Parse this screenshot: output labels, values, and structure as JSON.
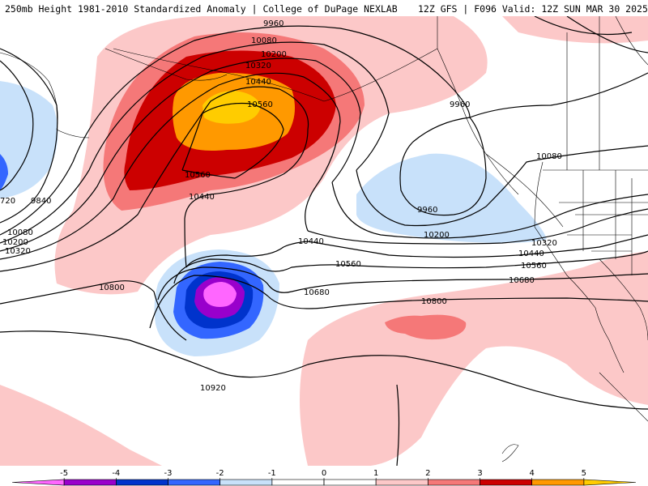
{
  "header": {
    "left": "250mb Height 1981-2010 Standardized Anomaly | College of DuPage NEXLAB",
    "right": "12Z GFS | F096 Valid: 12Z SUN MAR 30 2025"
  },
  "contour_labels": {
    "c9960_top": "9960",
    "c10080_top": "10080",
    "c10200_top": "10200",
    "c10320_top": "10320",
    "c10440_top": "10440",
    "c10560_top": "10560",
    "c10560_b": "10560",
    "c10440_b": "10440",
    "c9720_w": "720",
    "c9840_w": "9840",
    "c10080_w": "10080",
    "c10200_w": "10200",
    "c10320_w": "10320",
    "c10800_w": "10800",
    "c9960_e": "9960",
    "c10080_e": "10080",
    "c9960_low": "9960",
    "c10200_e": "10200",
    "c10320_e": "10320",
    "c10440_e": "10440",
    "c10440_mid": "10440",
    "c10560_mid": "10560",
    "c10560_e": "10560",
    "c10680_mid": "10680",
    "c10680_e": "10680",
    "c10800_mid": "10800",
    "c10920_s": "10920"
  },
  "legend": {
    "colors": [
      "#ff66ff",
      "#9900cc",
      "#0033cc",
      "#3366ff",
      "#c8e1fa",
      "#ffffff",
      "#ffffff",
      "#fcc8c8",
      "#f57878",
      "#cc0000",
      "#ff9900",
      "#ffcc00"
    ],
    "ticks": [
      "-5",
      "-4",
      "-3",
      "-2",
      "-1",
      "0",
      "1",
      "2",
      "3",
      "4",
      "5"
    ]
  },
  "palette": {
    "neg1": "#c8e1fa",
    "neg2": "#3366ff",
    "neg3": "#0033cc",
    "neg4": "#9900cc",
    "neg5": "#ff66ff",
    "pos1": "#fcc8c8",
    "pos2": "#f57878",
    "pos3": "#cc0000",
    "pos4": "#ff9900",
    "pos5": "#ffcc00"
  }
}
